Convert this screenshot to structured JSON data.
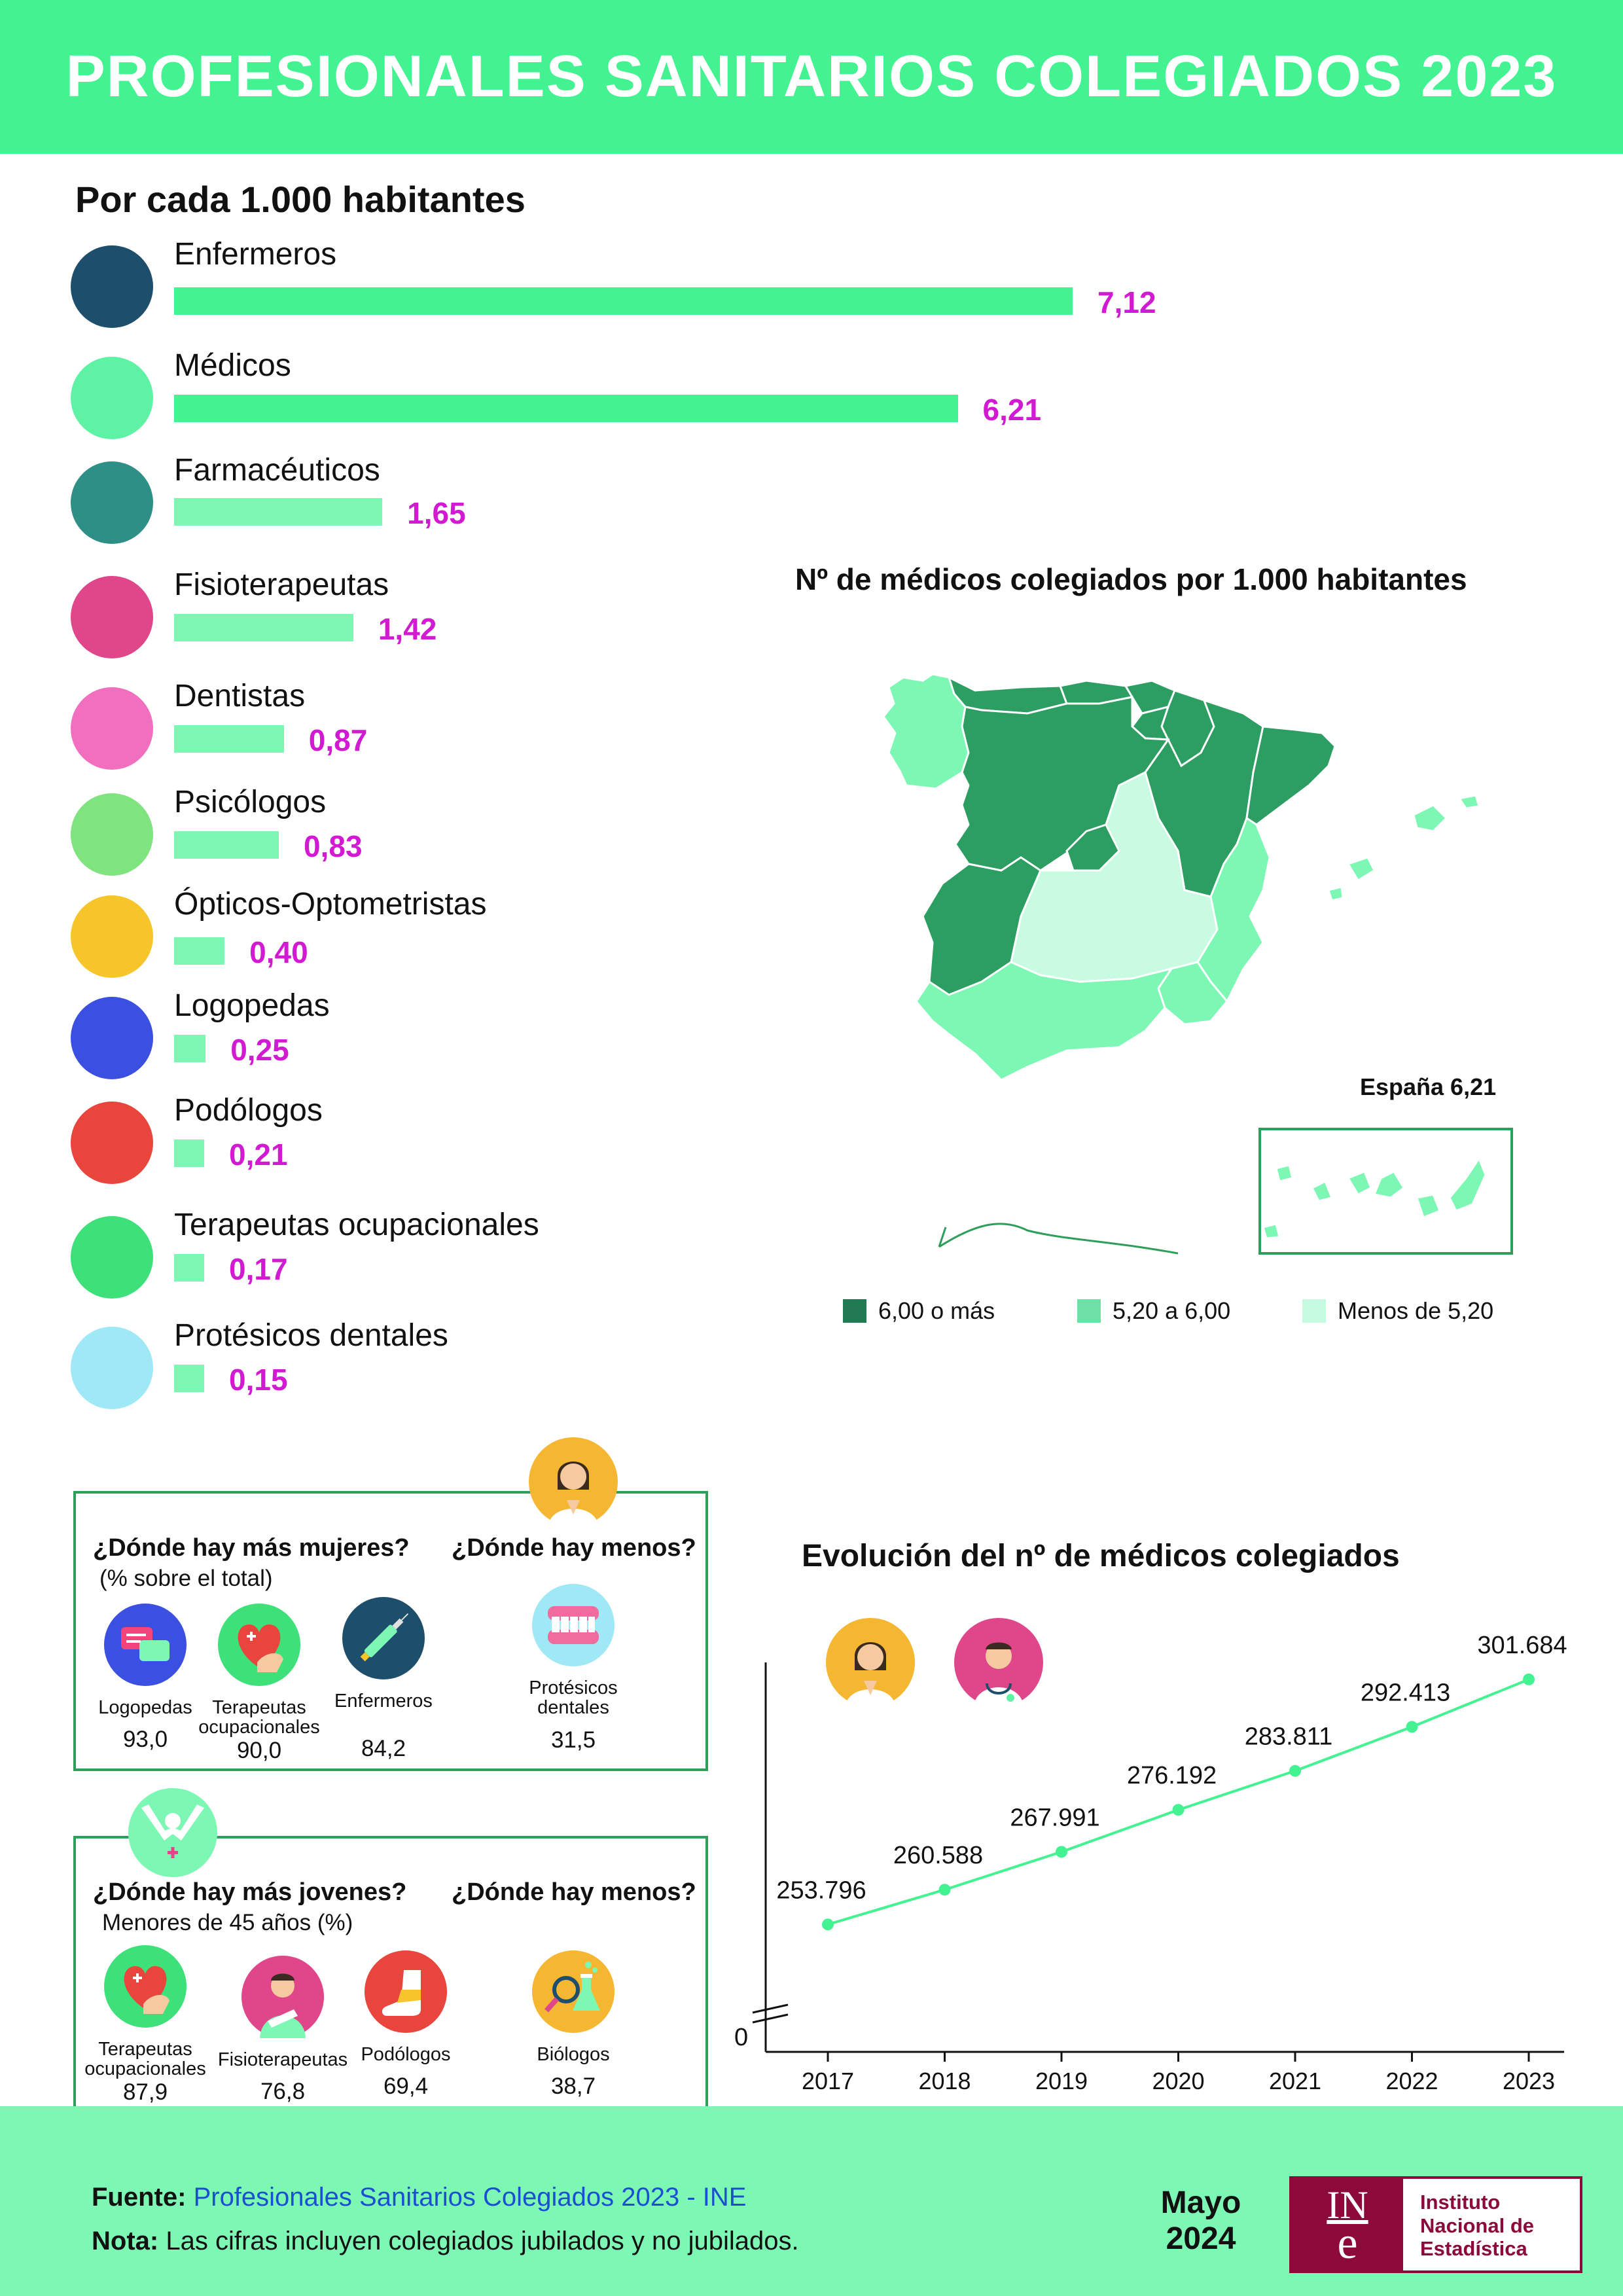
{
  "header": {
    "title": "PROFESIONALES SANITARIOS COLEGIADOS 2023"
  },
  "bars": {
    "heading": "Por cada 1.000 habitantes",
    "value_color": "#d21ad2",
    "bar_colors": {
      "top": "#43f290",
      "rest": "#7df7b4"
    }
  },
  "chart_data": [
    {
      "type": "bar",
      "orientation": "horizontal",
      "title": "Por cada 1.000 habitantes",
      "categories": [
        "Enfermeros",
        "Médicos",
        "Farmacéuticos",
        "Fisioterapeutas",
        "Dentistas",
        "Psicólogos",
        "Ópticos-Optometristas",
        "Logopedas",
        "Podólogos",
        "Terapeutas ocupacionales",
        "Protésicos dentales"
      ],
      "values": [
        7.12,
        6.21,
        1.65,
        1.42,
        0.87,
        0.83,
        0.4,
        0.25,
        0.21,
        0.17,
        0.15
      ],
      "value_labels": [
        "7,12",
        "6,21",
        "1,65",
        "1,42",
        "0,87",
        "0,83",
        "0,40",
        "0,25",
        "0,21",
        "0,17",
        "0,15"
      ],
      "icons": [
        "syringe-icon",
        "stethoscope-icon",
        "pills-icon",
        "physiotherapist-icon",
        "tooth-icon",
        "brain-icon",
        "eye-icon",
        "speech-bubbles-icon",
        "foot-icon",
        "heart-hand-icon",
        "dentures-icon"
      ],
      "icon_colors": [
        "#1d4e6b",
        "#5ef3a4",
        "#2e8f86",
        "#e0468a",
        "#f26fbf",
        "#7fe37f",
        "#f5c52a",
        "#3b4fe0",
        "#e8453c",
        "#3ee07a",
        "#9fe8f5"
      ]
    },
    {
      "type": "line",
      "title": "Evolución del nº de médicos colegiados",
      "x": [
        "2017",
        "2018",
        "2019",
        "2020",
        "2021",
        "2022",
        "2023"
      ],
      "values": [
        253796,
        260588,
        267991,
        276192,
        283811,
        292413,
        301684
      ],
      "value_labels": [
        "253.796",
        "260.588",
        "267.991",
        "276.192",
        "283.811",
        "292.413",
        "301.684"
      ],
      "y_axis_break": true,
      "y_tick_labels": [
        "0"
      ],
      "line_color": "#43f290"
    }
  ],
  "map": {
    "title": "Nº de médicos colegiados por 1.000 habitantes",
    "national_label": "España 6,21",
    "legend": [
      {
        "label": "6,00 o más",
        "color": "#217a52"
      },
      {
        "label": "5,20 a 6,00",
        "color": "#6de0a8"
      },
      {
        "label": "Menos de 5,20",
        "color": "#c6fae0"
      }
    ],
    "region_colors": {
      "high": "#2c9e62",
      "mid": "#7df7b4",
      "low": "#c9fbe2",
      "border": "#ffffff"
    }
  },
  "women_box": {
    "more_heading": "¿Dónde hay más mujeres?",
    "more_sub": "(% sobre el total)",
    "less_heading": "¿Dónde hay menos?",
    "items": [
      {
        "label": "Logopedas",
        "value": "93,0",
        "icon": "speech-bubbles-icon"
      },
      {
        "label": "Terapeutas ocupacionales",
        "value": "90,0",
        "icon": "heart-hand-icon"
      },
      {
        "label": "Enfermeros",
        "value": "84,2",
        "icon": "syringe-icon"
      },
      {
        "label": "Protésicos dentales",
        "value": "31,5",
        "icon": "dentures-icon"
      }
    ]
  },
  "young_box": {
    "more_heading": "¿Dónde hay más jovenes?",
    "more_sub": "Menores de 45 años (%)",
    "less_heading": "¿Dónde hay menos?",
    "items": [
      {
        "label": "Terapeutas ocupacionales",
        "value": "87,9",
        "icon": "heart-hand-icon"
      },
      {
        "label": "Fisioterapeutas",
        "value": "76,8",
        "icon": "physiotherapist-icon"
      },
      {
        "label": "Podólogos",
        "value": "69,4",
        "icon": "foot-icon"
      },
      {
        "label": "Biólogos",
        "value": "38,7",
        "icon": "microscope-icon"
      }
    ]
  },
  "line_chart": {
    "title": "Evolución del nº de médicos colegiados"
  },
  "footer": {
    "source_label": "Fuente:",
    "source_text": "Profesionales Sanitarios Colegiados 2023 - INE",
    "note_label": "Nota:",
    "note_text": "Las cifras incluyen colegiados jubilados y no jubilados.",
    "date_month": "Mayo",
    "date_year": "2024",
    "logo_mark_top": "IN",
    "logo_mark_bottom": "e",
    "logo_line1": "Instituto",
    "logo_line2": "Nacional de",
    "logo_line3": "Estadística"
  }
}
